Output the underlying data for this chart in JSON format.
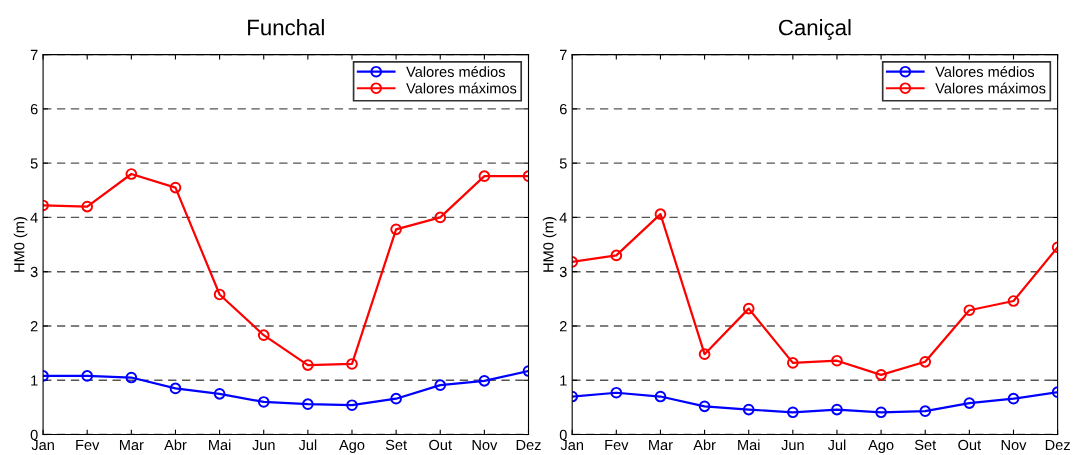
{
  "chart_data": [
    {
      "type": "line",
      "title": "Funchal",
      "ylabel": "HM0 (m)",
      "categories": [
        "Jan",
        "Fev",
        "Mar",
        "Abr",
        "Mai",
        "Jun",
        "Jul",
        "Ago",
        "Set",
        "Out",
        "Nov",
        "Dez"
      ],
      "ylim": [
        0,
        7
      ],
      "yticks": [
        0,
        1,
        2,
        3,
        4,
        5,
        6,
        7
      ],
      "grid": "y",
      "legend": "top right",
      "marker": "circle",
      "line_style": "solid",
      "series": [
        {
          "name": "Valores médios",
          "color": "#0000ff",
          "values": [
            1.08,
            1.08,
            1.05,
            0.85,
            0.75,
            0.6,
            0.56,
            0.54,
            0.66,
            0.91,
            0.99,
            1.17
          ]
        },
        {
          "name": "Valores máximos",
          "color": "#ff0000",
          "values": [
            4.22,
            4.2,
            4.8,
            4.55,
            2.58,
            1.83,
            1.28,
            1.3,
            3.78,
            4.0,
            4.76,
            4.76
          ]
        }
      ]
    },
    {
      "type": "line",
      "title": "Caniçal",
      "ylabel": "HM0 (m)",
      "categories": [
        "Jan",
        "Fev",
        "Mar",
        "Abr",
        "Mai",
        "Jun",
        "Jul",
        "Ago",
        "Set",
        "Out",
        "Nov",
        "Dez"
      ],
      "ylim": [
        0,
        7
      ],
      "yticks": [
        0,
        1,
        2,
        3,
        4,
        5,
        6,
        7
      ],
      "grid": "y",
      "legend": "top right",
      "marker": "circle",
      "line_style": "solid",
      "series": [
        {
          "name": "Valores médios",
          "color": "#0000ff",
          "values": [
            0.7,
            0.77,
            0.7,
            0.52,
            0.46,
            0.41,
            0.46,
            0.41,
            0.43,
            0.58,
            0.66,
            0.78
          ]
        },
        {
          "name": "Valores máximos",
          "color": "#ff0000",
          "values": [
            3.18,
            3.3,
            4.06,
            1.48,
            2.32,
            1.32,
            1.36,
            1.1,
            1.34,
            2.29,
            2.46,
            3.45
          ]
        }
      ]
    }
  ]
}
